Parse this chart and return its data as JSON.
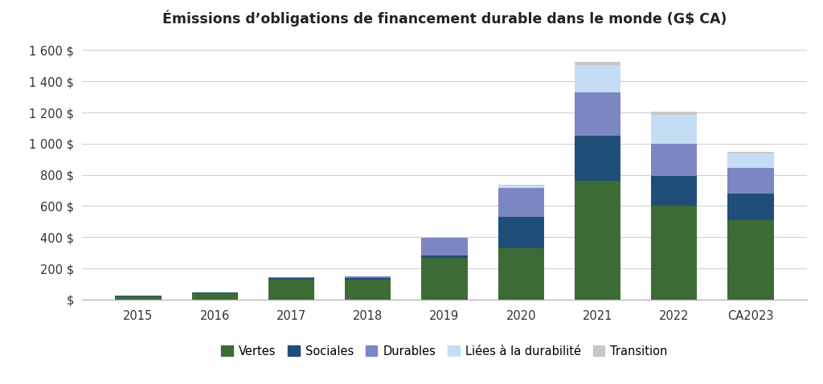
{
  "title": "Émissions d’obligations de financement durable dans le monde (G$ CA)",
  "categories": [
    "2015",
    "2016",
    "2017",
    "2018",
    "2019",
    "2020",
    "2021",
    "2022",
    "CA2023"
  ],
  "series": {
    "Vertes": [
      22,
      42,
      130,
      130,
      265,
      330,
      760,
      600,
      510
    ],
    "Sociales": [
      3,
      3,
      8,
      10,
      20,
      200,
      290,
      195,
      170
    ],
    "Durables": [
      0,
      0,
      5,
      8,
      110,
      185,
      280,
      205,
      165
    ],
    "Liées à la durabilité": [
      0,
      0,
      0,
      0,
      0,
      15,
      175,
      185,
      90
    ],
    "Transition": [
      0,
      0,
      0,
      0,
      0,
      5,
      20,
      20,
      15
    ]
  },
  "colors": {
    "Vertes": "#3d6b35",
    "Sociales": "#1f4e79",
    "Durables": "#7b86c2",
    "Liées à la durabilité": "#c5ddf4",
    "Transition": "#c8c8c8"
  },
  "ylim": [
    0,
    1700
  ],
  "yticks": [
    0,
    200,
    400,
    600,
    800,
    1000,
    1200,
    1400,
    1600
  ],
  "ytick_labels": [
    "$",
    "200 $",
    "400 $",
    "600 $",
    "800 $",
    "1 000 $",
    "1 200 $",
    "1 400 $",
    "1 600 $"
  ],
  "background_color": "#ffffff",
  "grid_color": "#d0d0d0",
  "title_fontsize": 12.5,
  "tick_fontsize": 10.5,
  "legend_fontsize": 10.5
}
